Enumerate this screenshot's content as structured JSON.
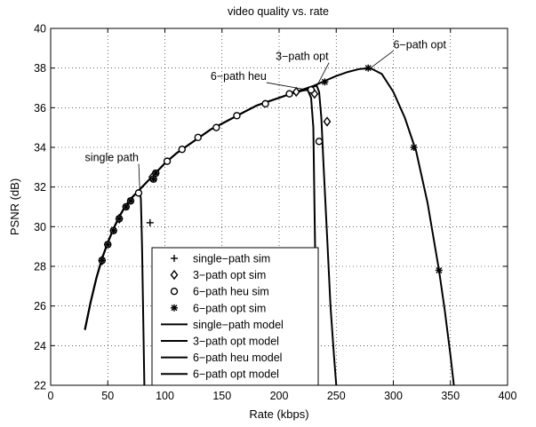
{
  "chart_data": {
    "type": "line",
    "title": "video quality vs. rate",
    "xlabel": "Rate (kbps)",
    "ylabel": "PSNR (dB)",
    "xlim": [
      0,
      400
    ],
    "ylim": [
      22,
      40
    ],
    "xticks": [
      0,
      50,
      100,
      150,
      200,
      250,
      300,
      350,
      400
    ],
    "yticks": [
      22,
      24,
      26,
      28,
      30,
      32,
      34,
      36,
      38,
      40
    ],
    "grid": true,
    "legend_position": "bottom-center",
    "series": [
      {
        "name": "single-path sim",
        "kind": "marker",
        "marker": "plus",
        "points": [
          [
            87,
            30.2
          ]
        ]
      },
      {
        "name": "3-path opt sim",
        "kind": "marker",
        "marker": "diamond",
        "points": [
          [
            45,
            28.3
          ],
          [
            60,
            30.4
          ],
          [
            89,
            32.5
          ],
          [
            215,
            36.8
          ],
          [
            231,
            36.7
          ],
          [
            242,
            35.3
          ]
        ]
      },
      {
        "name": "6-path heu sim",
        "kind": "marker",
        "marker": "circle",
        "points": [
          [
            45,
            28.3
          ],
          [
            50,
            29.1
          ],
          [
            55,
            29.8
          ],
          [
            60,
            30.4
          ],
          [
            66,
            31.0
          ],
          [
            70,
            31.3
          ],
          [
            77,
            31.7
          ],
          [
            90,
            32.4
          ],
          [
            92,
            32.7
          ],
          [
            102,
            33.3
          ],
          [
            115,
            33.9
          ],
          [
            129,
            34.5
          ],
          [
            145,
            35.0
          ],
          [
            163,
            35.6
          ],
          [
            188,
            36.2
          ],
          [
            209,
            36.7
          ],
          [
            228,
            36.9
          ],
          [
            235,
            34.3
          ]
        ]
      },
      {
        "name": "6-path opt sim",
        "kind": "marker",
        "marker": "asterisk",
        "points": [
          [
            45,
            28.3
          ],
          [
            50,
            29.1
          ],
          [
            55,
            29.8
          ],
          [
            60,
            30.4
          ],
          [
            66,
            31.0
          ],
          [
            70,
            31.3
          ],
          [
            90,
            32.4
          ],
          [
            92,
            32.7
          ],
          [
            240,
            37.3
          ],
          [
            278,
            38.0
          ],
          [
            318,
            34.0
          ],
          [
            340,
            27.8
          ]
        ]
      },
      {
        "name": "single-path model",
        "kind": "line",
        "points": [
          [
            30,
            24.8
          ],
          [
            35,
            26.2
          ],
          [
            40,
            27.4
          ],
          [
            45,
            28.4
          ],
          [
            50,
            29.2
          ],
          [
            55,
            29.9
          ],
          [
            60,
            30.5
          ],
          [
            65,
            31.0
          ],
          [
            70,
            31.4
          ],
          [
            75,
            31.7
          ],
          [
            78,
            31.85
          ],
          [
            79,
            31.4
          ],
          [
            80,
            29.0
          ],
          [
            81,
            25.5
          ],
          [
            82,
            22.0
          ]
        ]
      },
      {
        "name": "3-path opt model",
        "kind": "line",
        "points": [
          [
            30,
            24.8
          ],
          [
            35,
            26.2
          ],
          [
            40,
            27.4
          ],
          [
            45,
            28.4
          ],
          [
            50,
            29.2
          ],
          [
            55,
            29.9
          ],
          [
            60,
            30.5
          ],
          [
            65,
            31.0
          ],
          [
            70,
            31.4
          ],
          [
            75,
            31.7
          ],
          [
            80,
            32.0
          ],
          [
            90,
            32.6
          ],
          [
            100,
            33.2
          ],
          [
            110,
            33.7
          ],
          [
            120,
            34.1
          ],
          [
            130,
            34.5
          ],
          [
            140,
            34.9
          ],
          [
            150,
            35.2
          ],
          [
            160,
            35.5
          ],
          [
            170,
            35.8
          ],
          [
            180,
            36.1
          ],
          [
            190,
            36.3
          ],
          [
            200,
            36.5
          ],
          [
            210,
            36.7
          ],
          [
            220,
            36.9
          ],
          [
            228,
            37.05
          ],
          [
            233,
            37.1
          ],
          [
            235,
            36.8
          ],
          [
            237,
            35.5
          ],
          [
            239,
            33.0
          ],
          [
            242,
            29.5
          ],
          [
            245,
            26.0
          ],
          [
            248,
            23.5
          ],
          [
            250,
            22.0
          ]
        ]
      },
      {
        "name": "6-path heu model",
        "kind": "line",
        "points": [
          [
            30,
            24.8
          ],
          [
            35,
            26.2
          ],
          [
            40,
            27.4
          ],
          [
            45,
            28.4
          ],
          [
            50,
            29.2
          ],
          [
            55,
            29.9
          ],
          [
            60,
            30.5
          ],
          [
            65,
            31.0
          ],
          [
            70,
            31.4
          ],
          [
            75,
            31.7
          ],
          [
            80,
            32.0
          ],
          [
            90,
            32.6
          ],
          [
            100,
            33.2
          ],
          [
            110,
            33.7
          ],
          [
            120,
            34.1
          ],
          [
            130,
            34.5
          ],
          [
            140,
            34.9
          ],
          [
            150,
            35.2
          ],
          [
            160,
            35.5
          ],
          [
            170,
            35.8
          ],
          [
            180,
            36.1
          ],
          [
            190,
            36.3
          ],
          [
            200,
            36.5
          ],
          [
            210,
            36.7
          ],
          [
            220,
            36.85
          ],
          [
            225,
            36.9
          ],
          [
            228,
            36.5
          ],
          [
            230,
            35.0
          ],
          [
            231,
            31.0
          ],
          [
            232,
            27.0
          ],
          [
            233,
            22.0
          ]
        ]
      },
      {
        "name": "6-path opt model",
        "kind": "line",
        "points": [
          [
            30,
            24.8
          ],
          [
            35,
            26.2
          ],
          [
            40,
            27.4
          ],
          [
            45,
            28.4
          ],
          [
            50,
            29.2
          ],
          [
            55,
            29.9
          ],
          [
            60,
            30.5
          ],
          [
            65,
            31.0
          ],
          [
            70,
            31.4
          ],
          [
            75,
            31.7
          ],
          [
            80,
            32.0
          ],
          [
            90,
            32.6
          ],
          [
            100,
            33.2
          ],
          [
            110,
            33.7
          ],
          [
            120,
            34.1
          ],
          [
            130,
            34.5
          ],
          [
            140,
            34.9
          ],
          [
            150,
            35.2
          ],
          [
            160,
            35.5
          ],
          [
            170,
            35.8
          ],
          [
            180,
            36.1
          ],
          [
            190,
            36.3
          ],
          [
            200,
            36.5
          ],
          [
            210,
            36.7
          ],
          [
            220,
            36.9
          ],
          [
            230,
            37.1
          ],
          [
            240,
            37.35
          ],
          [
            250,
            37.6
          ],
          [
            260,
            37.8
          ],
          [
            270,
            37.95
          ],
          [
            280,
            38.0
          ],
          [
            290,
            37.7
          ],
          [
            300,
            36.8
          ],
          [
            310,
            35.5
          ],
          [
            320,
            33.8
          ],
          [
            330,
            31.2
          ],
          [
            340,
            27.8
          ],
          [
            345,
            25.8
          ],
          [
            350,
            23.5
          ],
          [
            353,
            22.0
          ]
        ]
      }
    ],
    "annotations": [
      {
        "text": "single path",
        "at": [
          78,
          31.9
        ],
        "label_at": [
          30,
          33.3
        ]
      },
      {
        "text": "3−path opt",
        "at": [
          233,
          37.1
        ],
        "label_at": [
          197,
          38.4
        ]
      },
      {
        "text": "6−path heu",
        "at": [
          225,
          36.9
        ],
        "label_at": [
          140,
          37.4
        ]
      },
      {
        "text": "6−path opt",
        "at": [
          280,
          38.0
        ],
        "label_at": [
          300,
          39.0
        ]
      }
    ],
    "legend_labels": [
      "single−path sim",
      "3−path opt sim",
      "6−path heu sim",
      "6−path opt sim",
      "single−path model",
      "3−path opt model",
      "6−path heu model",
      "6−path opt model"
    ]
  }
}
